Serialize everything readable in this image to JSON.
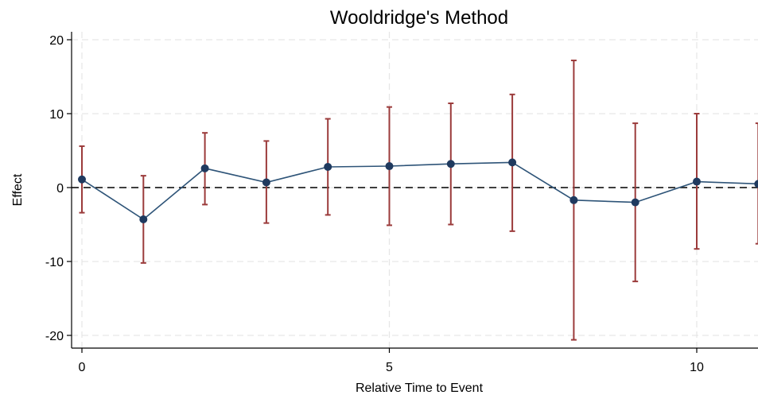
{
  "chart_data": {
    "type": "line",
    "title": "Wooldridge's Method",
    "xlabel": "Relative Time to Event",
    "ylabel": "Effect",
    "xlim": [
      0,
      11
    ],
    "ylim": [
      -22,
      22
    ],
    "x_ticks": [
      0,
      5,
      10
    ],
    "y_ticks": [
      -20,
      -10,
      0,
      10,
      20
    ],
    "grid": true,
    "reference_line": {
      "y": 0,
      "style": "dashed"
    },
    "series": [
      {
        "type": "point-estimate-with-ci",
        "x": [
          0,
          1,
          2,
          3,
          4,
          5,
          6,
          7,
          8,
          9,
          10,
          11
        ],
        "y": [
          1.1,
          -4.3,
          2.6,
          0.7,
          2.8,
          2.9,
          3.2,
          3.4,
          -1.7,
          -2.0,
          0.8,
          0.5
        ],
        "lower": [
          -3.4,
          -10.2,
          -2.3,
          -4.8,
          -3.7,
          -5.1,
          -5.0,
          -5.9,
          -20.6,
          -12.7,
          -8.3,
          -7.6
        ],
        "upper": [
          5.6,
          1.6,
          7.4,
          6.3,
          9.3,
          10.9,
          11.4,
          12.6,
          17.2,
          8.7,
          10.0,
          8.7
        ]
      }
    ],
    "colors": {
      "line": "#2e5478",
      "marker": "#1f3a5f",
      "ci": "#9b3b3b",
      "grid": "#e6e6e6",
      "reference": "#000000"
    }
  }
}
